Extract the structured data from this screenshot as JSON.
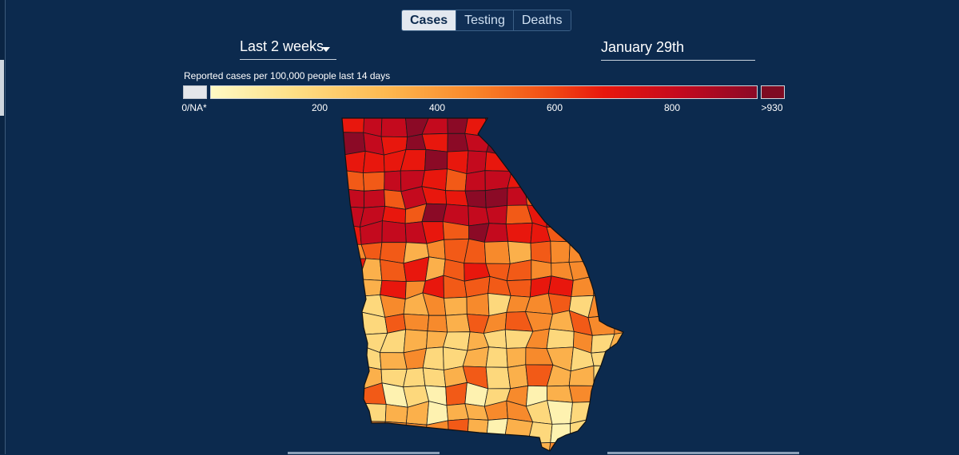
{
  "tabs": [
    {
      "label": "Cases",
      "active": true
    },
    {
      "label": "Testing",
      "active": false
    },
    {
      "label": "Deaths",
      "active": false
    }
  ],
  "period_select": {
    "value": "Last 2 weeks"
  },
  "date_field": {
    "value": "January 29th"
  },
  "legend": {
    "title": "Reported cases per 100,000 people last 14 days",
    "na_label": "0/NA*",
    "ticks": [
      "200",
      "400",
      "600",
      "800"
    ],
    "max_label": ">930",
    "colors": {
      "na": "#e4e6ea",
      "low": "#fffac4",
      "high": "#8b0a26",
      "max": "#7e0b22"
    }
  },
  "map": {
    "region": "Georgia",
    "fill_palette": [
      "#fef2b0",
      "#fdd87c",
      "#fbb04b",
      "#f78a2c",
      "#f25a17",
      "#e8170d",
      "#c40a1e",
      "#8b0a26"
    ]
  }
}
